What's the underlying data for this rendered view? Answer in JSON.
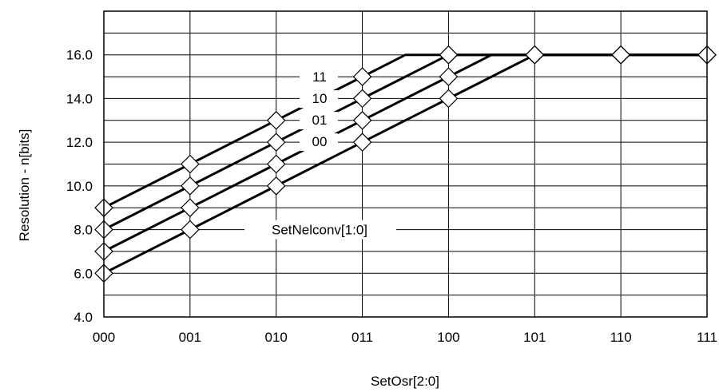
{
  "chart_data": {
    "type": "line",
    "xlabel": "SetOsr[2:0]",
    "ylabel": "Resolution - n[bits]",
    "categories": [
      "000",
      "001",
      "010",
      "011",
      "100",
      "101",
      "110",
      "111"
    ],
    "ylim": [
      4.0,
      18.0
    ],
    "yticks": [
      4.0,
      6.0,
      8.0,
      10.0,
      12.0,
      14.0,
      16.0
    ],
    "ytick_labels": [
      "4.0",
      "6.0",
      "8.0",
      "10.0",
      "12.0",
      "14.0",
      "16.0"
    ],
    "grid": true,
    "series": [
      {
        "name": "11",
        "values": [
          9,
          11,
          13,
          15,
          16,
          16,
          16,
          16
        ]
      },
      {
        "name": "10",
        "values": [
          8,
          10,
          12,
          14,
          16,
          16,
          16,
          16
        ]
      },
      {
        "name": "01",
        "values": [
          7,
          9,
          11,
          13,
          15,
          16,
          16,
          16
        ]
      },
      {
        "name": "00",
        "values": [
          6,
          8,
          10,
          12,
          14,
          16,
          16,
          16
        ]
      }
    ],
    "annotation": "SetNelconv[1:0]",
    "marker": "diamond",
    "line_color": "#000000",
    "background": "#ffffff"
  }
}
